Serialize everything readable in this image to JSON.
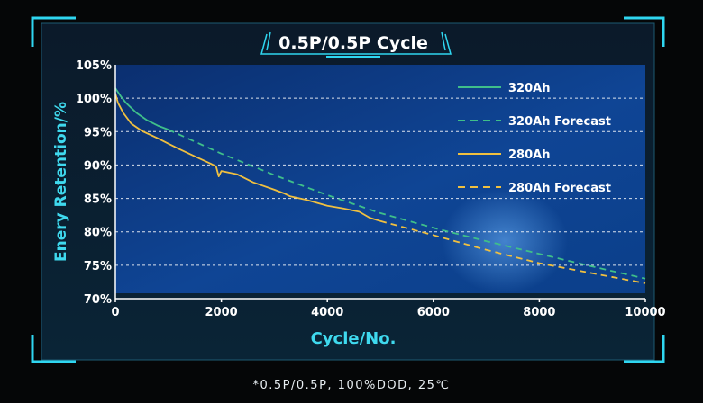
{
  "chart_data": {
    "type": "line",
    "title": "0.5P/0.5P Cycle",
    "xlabel": "Cycle/No.",
    "ylabel": "Enery Retention/%",
    "xlim": [
      0,
      10000
    ],
    "ylim": [
      70,
      105
    ],
    "x_ticks": [
      "0",
      "2000",
      "4000",
      "6000",
      "8000",
      "10000"
    ],
    "y_ticks": [
      "70%",
      "75%",
      "80%",
      "85%",
      "90%",
      "95%",
      "100%",
      "105%"
    ],
    "grid": true,
    "legend_position": "top-right",
    "series": [
      {
        "name": "320Ah",
        "style": "solid",
        "color": "#3fbf8a",
        "x": [
          0,
          100,
          200,
          400,
          600,
          800,
          1000
        ],
        "y": [
          101.5,
          100.3,
          99.3,
          97.8,
          96.7,
          95.9,
          95.3
        ]
      },
      {
        "name": "320Ah Forecast",
        "style": "dashed",
        "color": "#3fbf8a",
        "x": [
          1000,
          2000,
          3000,
          4000,
          5000,
          6000,
          7000,
          8000,
          9000,
          10000
        ],
        "y": [
          95.3,
          91.7,
          88.5,
          85.5,
          82.8,
          80.6,
          78.6,
          76.7,
          74.8,
          73.0
        ]
      },
      {
        "name": "280Ah",
        "style": "solid",
        "color": "#f0c040",
        "x": [
          0,
          50,
          150,
          300,
          500,
          800,
          1000,
          1200,
          1500,
          1800,
          1900,
          1950,
          2000,
          2300,
          2600,
          3000,
          3200,
          3300,
          3600,
          4000,
          4300,
          4600,
          4800,
          5000
        ],
        "y": [
          100.7,
          99.3,
          97.8,
          96.2,
          95.1,
          94.0,
          93.2,
          92.4,
          91.3,
          90.2,
          89.8,
          88.3,
          89.1,
          88.6,
          87.4,
          86.3,
          85.7,
          85.3,
          84.8,
          83.9,
          83.5,
          83.0,
          82.1,
          81.6
        ]
      },
      {
        "name": "280Ah Forecast",
        "style": "dashed",
        "color": "#f0c040",
        "x": [
          5000,
          6000,
          7000,
          8000,
          9000,
          10000
        ],
        "y": [
          81.6,
          79.5,
          77.3,
          75.3,
          73.8,
          72.3
        ]
      }
    ]
  },
  "footnote": "*0.5P/0.5P, 100%DOD, 25℃",
  "colors": {
    "frame_accent": "#2fd6f0",
    "axis_label": "#3fd9ee",
    "plot_bg": "#0c3a82",
    "panel_bg": "#0a1a2c"
  }
}
